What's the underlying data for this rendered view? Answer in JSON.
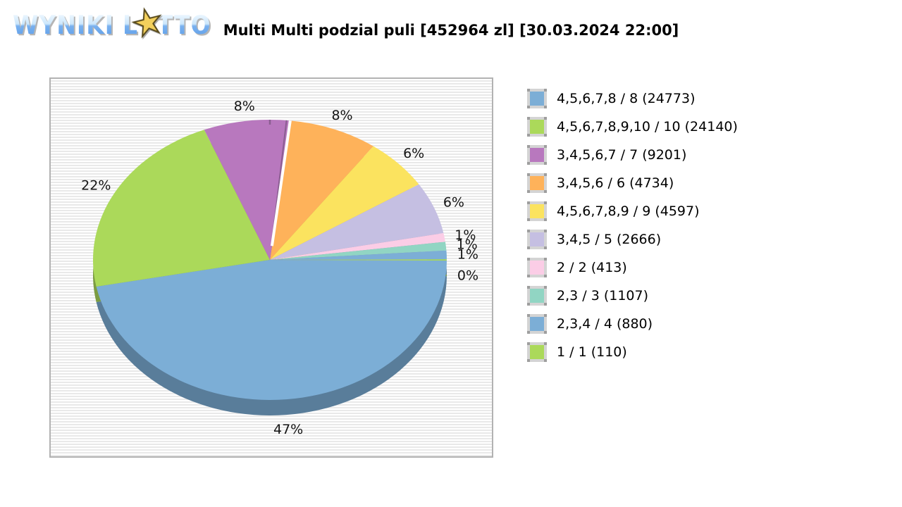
{
  "logo": {
    "wyniki": "WYNIKI",
    "lotto_pre": "L",
    "star_glyph": "★",
    "lotto_post": "TTO"
  },
  "header": {
    "title": "Multi Multi podzial puli [452964 zl] [30.03.2024 22:00]"
  },
  "chart_data": {
    "type": "pie",
    "style": "3d",
    "title": "Multi Multi podzial puli [452964 zl] [30.03.2024 22:00]",
    "pool_amount_label": "452964 zl",
    "draw_datetime_label": "30.03.2024 22:00",
    "legend_position": "right",
    "direction": "clockwise",
    "start_angle_deg": 83,
    "slice_draw_order": [
      3,
      4,
      5,
      6,
      7,
      8,
      9,
      0,
      1,
      2
    ],
    "slices": [
      {
        "name": "4,5,6,7,8 / 8",
        "count": 24773,
        "percent": 47,
        "color": "#7caed6"
      },
      {
        "name": "4,5,6,7,8,9,10 / 10",
        "count": 24140,
        "percent": 22,
        "color": "#abd95a"
      },
      {
        "name": "3,4,5,6,7 / 7",
        "count": 9201,
        "percent": 8,
        "color": "#b878be"
      },
      {
        "name": "3,4,5,6 / 6",
        "count": 4734,
        "percent": 8,
        "color": "#feb25a"
      },
      {
        "name": "4,5,6,7,8,9 / 9",
        "count": 4597,
        "percent": 6,
        "color": "#fbe35f"
      },
      {
        "name": "3,4,5 / 5",
        "count": 2666,
        "percent": 6,
        "color": "#c5bfe2"
      },
      {
        "name": "2 / 2",
        "count": 413,
        "percent": 1,
        "color": "#fbcde6"
      },
      {
        "name": "2,3 / 3",
        "count": 1107,
        "percent": 1,
        "color": "#91d5c3"
      },
      {
        "name": "2,3,4 / 4",
        "count": 880,
        "percent": 1,
        "color": "#7caed6"
      },
      {
        "name": "1 / 1",
        "count": 110,
        "percent": 0,
        "color": "#abd95a"
      }
    ]
  }
}
